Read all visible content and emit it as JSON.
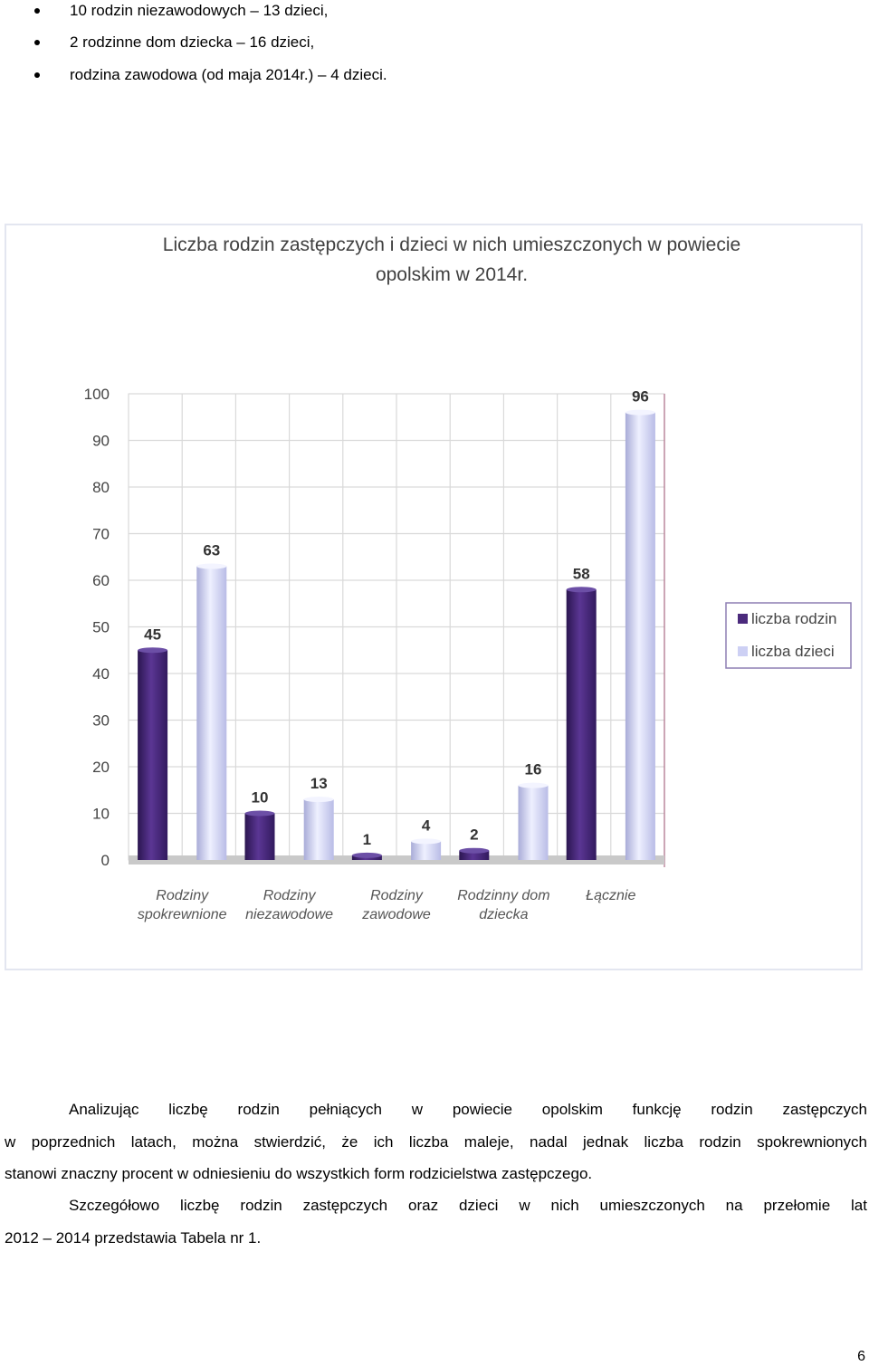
{
  "bullets": [
    "10 rodzin niezawodowych – 13 dzieci,",
    "2 rodzinne dom dziecka – 16 dzieci,",
    "rodzina zawodowa (od maja 2014r.) – 4 dzieci."
  ],
  "chart_data": {
    "type": "bar",
    "title_lines": [
      "Liczba rodzin zastępczych i dzieci w nich umieszczonych w powiecie",
      "opolskim w 2014r."
    ],
    "categories": [
      [
        "Rodziny",
        "spokrewnione"
      ],
      [
        "Rodziny",
        "niezawodowe"
      ],
      [
        "Rodziny",
        "zawodowe"
      ],
      [
        "Rodzinny dom",
        "dziecka"
      ],
      [
        "Łącznie"
      ]
    ],
    "series": [
      {
        "name": "liczba rodzin",
        "values": [
          45,
          10,
          1,
          2,
          58
        ],
        "color": "#4b2a7c"
      },
      {
        "name": "liczba dzieci",
        "values": [
          63,
          13,
          4,
          16,
          96
        ],
        "color": "#cdd0f4"
      }
    ],
    "yticks": [
      "0",
      "10",
      "20",
      "30",
      "40",
      "50",
      "60",
      "70",
      "80",
      "90",
      "100"
    ],
    "ylim": [
      0,
      100
    ],
    "grid": true,
    "legend_position": "right"
  },
  "paragraph1": {
    "lines": [
      "Analizując liczbę rodzin pełniących w powiecie opolskim funkcję rodzin zastępczych",
      "w poprzednich latach, można stwierdzić, że ich liczba maleje, nadal jednak liczba rodzin spokrewnionych",
      "stanowi znaczny procent w odniesieniu do wszystkich form rodzicielstwa zastępczego."
    ]
  },
  "paragraph2": {
    "lines": [
      "Szczegółowo liczbę rodzin zastępczych oraz dzieci w nich umieszczonych na przełomie lat",
      "2012 – 2014 przedstawia Tabela nr 1."
    ]
  },
  "page_number": "6"
}
